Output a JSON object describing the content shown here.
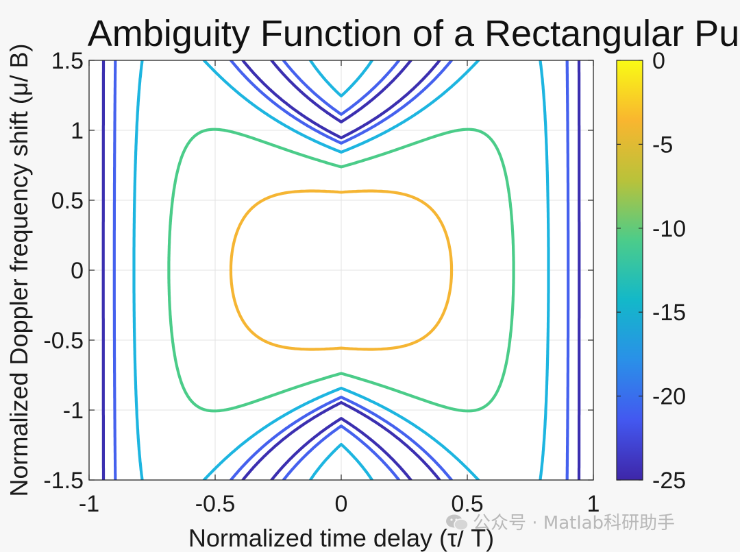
{
  "chart_data": {
    "type": "contour",
    "title": "Ambiguity Function of a Rectangular Pulse",
    "xlabel": "Normalized time delay (τ/ T)",
    "ylabel": "Normalized Doppler frequency shift (μ/ B)",
    "xlim": [
      -1,
      1
    ],
    "ylim": [
      -1.5,
      1.5
    ],
    "xticks": [
      -1,
      -0.5,
      0,
      0.5,
      1
    ],
    "xtick_labels": [
      "-1",
      "-0.5",
      "0",
      "0.5",
      "1"
    ],
    "yticks": [
      -1.5,
      -1,
      -0.5,
      0,
      0.5,
      1,
      1.5
    ],
    "ytick_labels": [
      "-1.5",
      "-1",
      "-0.5",
      "0",
      "0.5",
      "1",
      "1.5"
    ],
    "grid": true,
    "colorbar": {
      "label": "",
      "limits": [
        -25,
        0
      ],
      "ticks": [
        0,
        -5,
        -10,
        -15,
        -20,
        -25
      ],
      "tick_labels": [
        "0",
        "-5",
        "-10",
        "-15",
        "-20",
        "-25"
      ],
      "colormap": "parula",
      "colors": [
        "#3e26a8",
        "#4358f0",
        "#2a90e8",
        "#13b8c9",
        "#4ccc8a",
        "#b9c23a",
        "#f9b62f",
        "#f9fb15"
      ]
    },
    "levels_dB": [
      -5,
      -10,
      -15,
      -20,
      -25
    ],
    "level_colors": {
      "-5": "#f5b533",
      "-10": "#4bcc89",
      "-15": "#1db5e0",
      "-20": "#4561ee",
      "-25": "#3b2fb0"
    },
    "function": "20*log10(|(1-|tau|)*sinc(mu*(1-|tau|))|)"
  },
  "watermark": {
    "text": "公众号 · Matlab科研助手",
    "icon": "wechat-icon"
  }
}
